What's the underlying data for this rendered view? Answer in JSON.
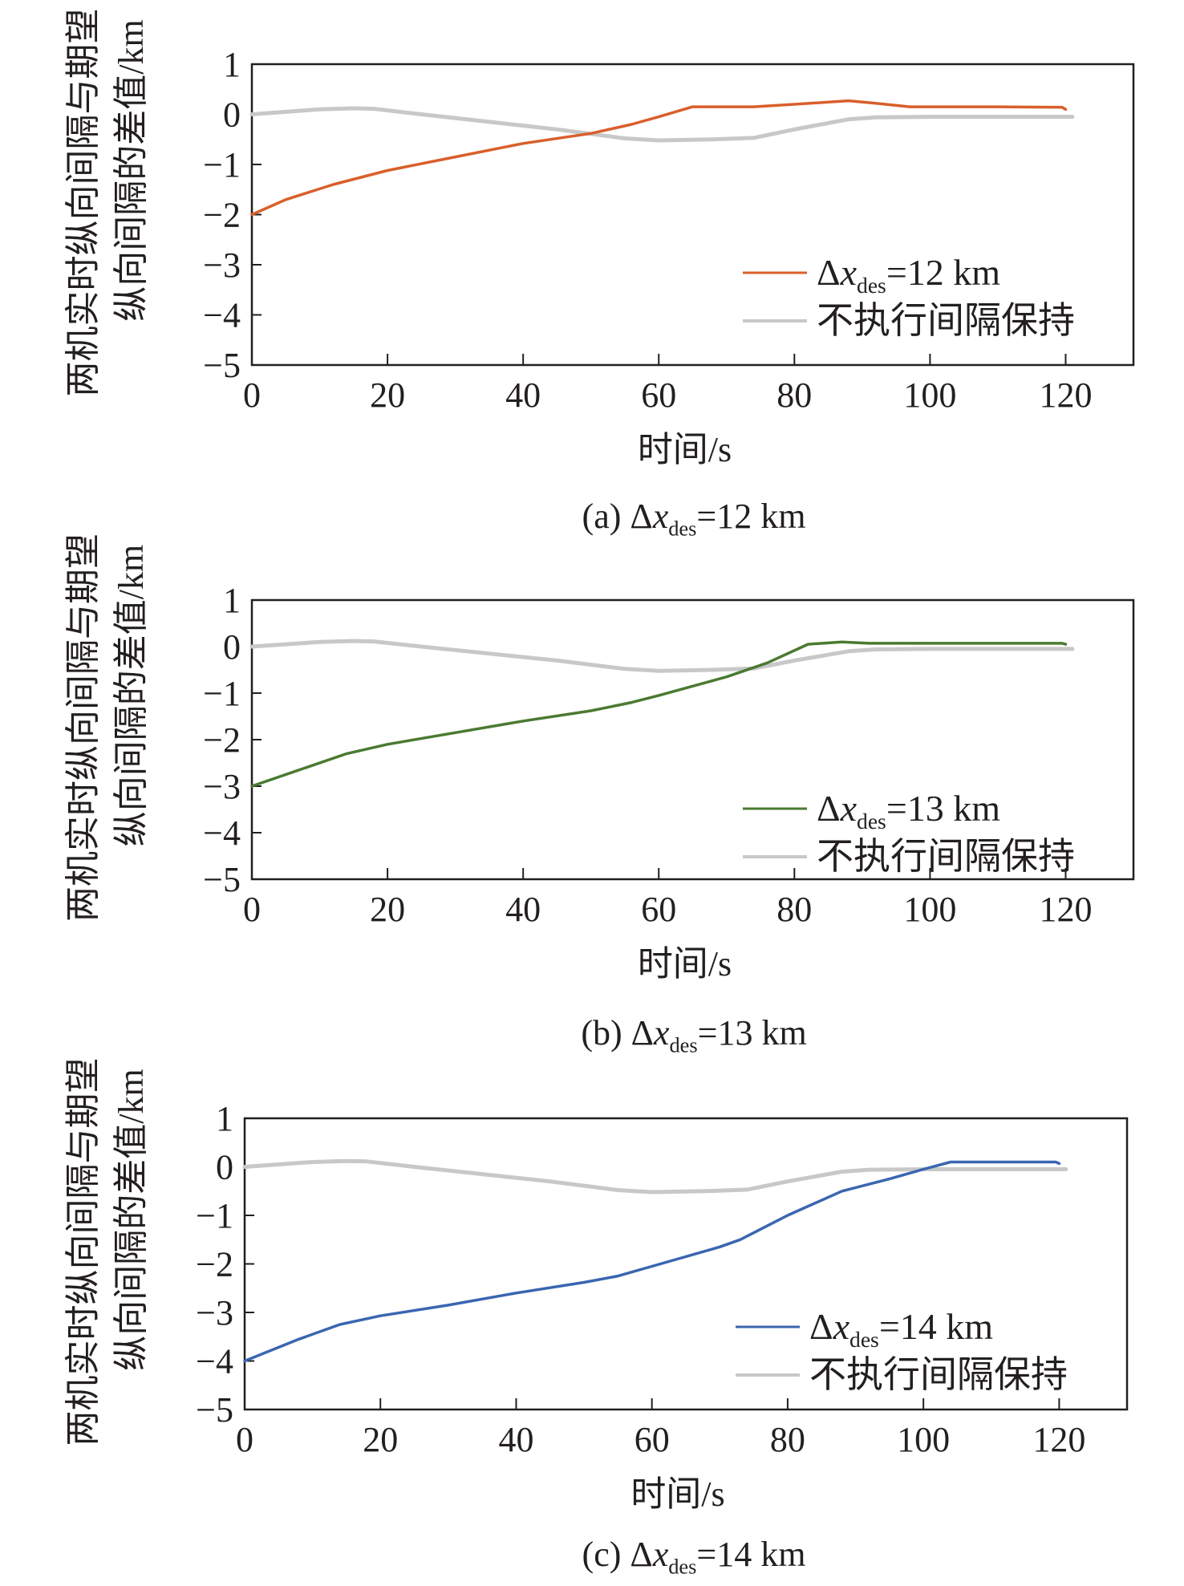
{
  "chart_data": [
    {
      "type": "line",
      "caption": {
        "prefix": "(a) Δ",
        "var": "x",
        "sub": "des",
        "suffix": "=12 km"
      },
      "xlabel": "时间/s",
      "ylabel": [
        "两机实时纵向间隔与期望",
        "纵向间隔的差值/km"
      ],
      "xlim": [
        0,
        130
      ],
      "ylim": [
        -5,
        1
      ],
      "xticks": [
        0,
        20,
        40,
        60,
        80,
        100,
        120
      ],
      "yticks": [
        1,
        0,
        -1,
        -2,
        -3,
        -4,
        -5
      ],
      "ytick_labels": [
        "1",
        "0",
        "−1",
        "−2",
        "−3",
        "−4",
        "−5"
      ],
      "legend_position": "lower-right",
      "grid": false,
      "series": [
        {
          "name_prefix": "Δ",
          "name_var": "x",
          "name_sub": "des",
          "name_suffix": "=12 km",
          "color": "#d95f2b",
          "x": [
            0,
            5,
            12,
            20,
            30,
            40,
            50,
            56,
            60,
            65,
            74,
            80,
            88,
            92,
            97,
            110,
            119.5,
            120
          ],
          "y": [
            -2,
            -1.7,
            -1.4,
            -1.12,
            -0.85,
            -0.58,
            -0.38,
            -0.2,
            -0.05,
            0.15,
            0.15,
            0.2,
            0.27,
            0.22,
            0.15,
            0.15,
            0.14,
            0.1
          ]
        },
        {
          "name": "不执行间隔保持",
          "color": "#c8c8c8",
          "x": [
            0,
            5,
            10,
            15,
            18,
            25,
            35,
            45,
            55,
            60,
            68,
            74,
            80,
            88,
            92,
            100,
            121
          ],
          "y": [
            0,
            0.05,
            0.1,
            0.12,
            0.11,
            0,
            -0.15,
            -0.3,
            -0.48,
            -0.52,
            -0.5,
            -0.47,
            -0.3,
            -0.1,
            -0.06,
            -0.05,
            -0.05
          ]
        }
      ]
    },
    {
      "type": "line",
      "caption": {
        "prefix": "(b) Δ",
        "var": "x",
        "sub": "des",
        "suffix": "=13 km"
      },
      "xlabel": "时间/s",
      "ylabel": [
        "两机实时纵向间隔与期望",
        "纵向间隔的差值/km"
      ],
      "xlim": [
        0,
        130
      ],
      "ylim": [
        -5,
        1
      ],
      "xticks": [
        0,
        20,
        40,
        60,
        80,
        100,
        120
      ],
      "yticks": [
        1,
        0,
        -1,
        -2,
        -3,
        -4,
        -5
      ],
      "ytick_labels": [
        "1",
        "0",
        "−1",
        "−2",
        "−3",
        "−4",
        "−5"
      ],
      "legend_position": "lower-right",
      "grid": false,
      "series": [
        {
          "name_prefix": "Δ",
          "name_var": "x",
          "name_sub": "des",
          "name_suffix": "=13 km",
          "color": "#4a7a32",
          "x": [
            0,
            8,
            14,
            20,
            30,
            40,
            50,
            56,
            60,
            70,
            76,
            82,
            87,
            91,
            110,
            119.5,
            120
          ],
          "y": [
            -3,
            -2.6,
            -2.3,
            -2.1,
            -1.85,
            -1.6,
            -1.38,
            -1.2,
            -1.05,
            -0.65,
            -0.35,
            0.05,
            0.1,
            0.07,
            0.07,
            0.07,
            0.05
          ]
        },
        {
          "name": "不执行间隔保持",
          "color": "#c8c8c8",
          "x": [
            0,
            5,
            10,
            15,
            18,
            25,
            35,
            45,
            55,
            60,
            68,
            74,
            80,
            88,
            92,
            100,
            121
          ],
          "y": [
            0,
            0.05,
            0.1,
            0.12,
            0.11,
            0,
            -0.15,
            -0.3,
            -0.48,
            -0.52,
            -0.5,
            -0.47,
            -0.3,
            -0.1,
            -0.06,
            -0.05,
            -0.05
          ]
        }
      ]
    },
    {
      "type": "line",
      "caption": {
        "prefix": "(c) Δ",
        "var": "x",
        "sub": "des",
        "suffix": "=14 km"
      },
      "xlabel": "时间/s",
      "ylabel": [
        "两机实时纵向间隔与期望",
        "纵向间隔的差值/km"
      ],
      "xlim": [
        0,
        130
      ],
      "ylim": [
        -5,
        1
      ],
      "xticks": [
        0,
        20,
        40,
        60,
        80,
        100,
        120
      ],
      "yticks": [
        1,
        0,
        -1,
        -2,
        -3,
        -4,
        -5
      ],
      "ytick_labels": [
        "1",
        "0",
        "−1",
        "−2",
        "−3",
        "−4",
        "−5"
      ],
      "legend_position": "lower-right",
      "grid": false,
      "series": [
        {
          "name_prefix": "Δ",
          "name_var": "x",
          "name_sub": "des",
          "name_suffix": "=14 km",
          "color": "#3a66b0",
          "x": [
            0,
            8,
            14,
            20,
            30,
            40,
            50,
            55,
            60,
            70,
            73,
            80,
            88,
            95,
            100,
            104,
            119.5,
            120
          ],
          "y": [
            -4,
            -3.55,
            -3.25,
            -3.07,
            -2.85,
            -2.6,
            -2.38,
            -2.25,
            -2.05,
            -1.65,
            -1.5,
            -1.0,
            -0.5,
            -0.25,
            -0.05,
            0.1,
            0.1,
            0.07
          ]
        },
        {
          "name": "不执行间隔保持",
          "color": "#c8c8c8",
          "x": [
            0,
            5,
            10,
            15,
            18,
            25,
            35,
            45,
            55,
            60,
            68,
            74,
            80,
            88,
            92,
            100,
            121
          ],
          "y": [
            0,
            0.05,
            0.1,
            0.12,
            0.11,
            0,
            -0.15,
            -0.3,
            -0.48,
            -0.52,
            -0.5,
            -0.47,
            -0.3,
            -0.1,
            -0.06,
            -0.05,
            -0.05
          ]
        }
      ]
    }
  ]
}
